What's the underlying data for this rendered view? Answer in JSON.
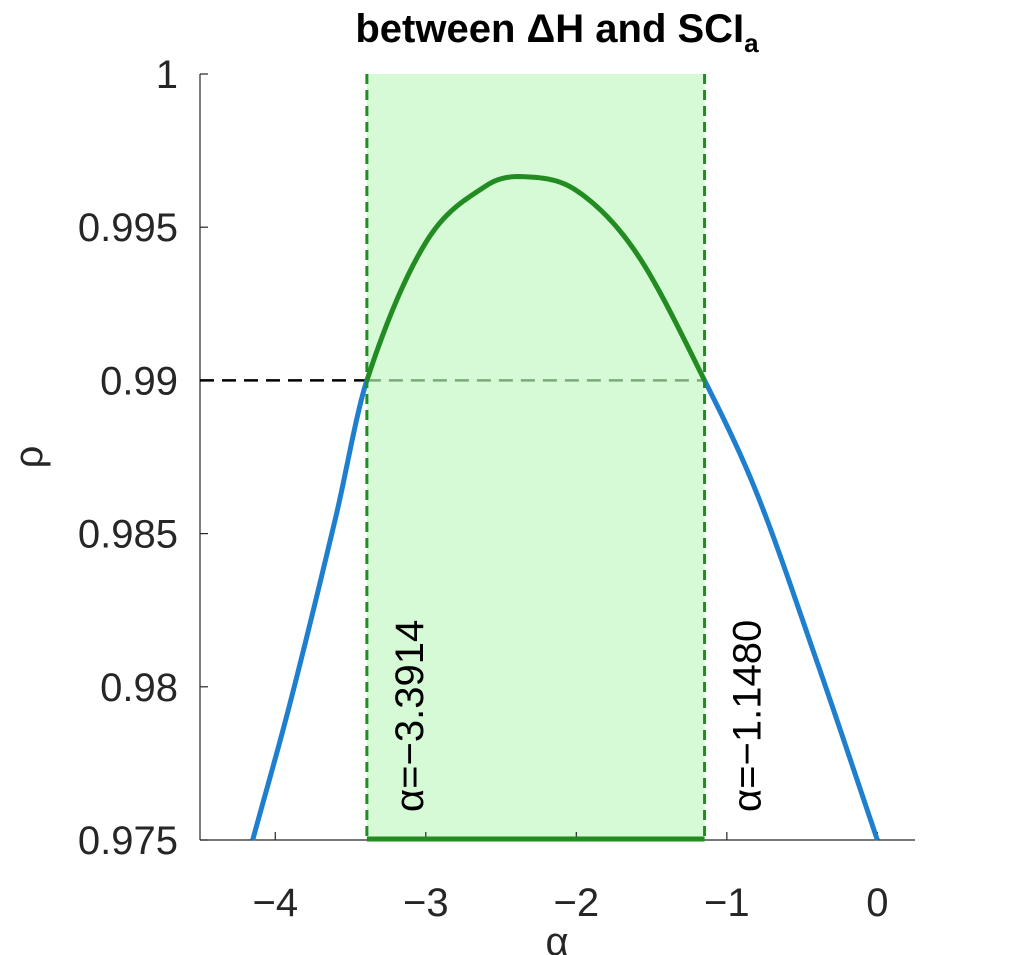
{
  "chart_data": {
    "type": "line",
    "title": "between ΔH and SCI",
    "title_subscript": "a",
    "xlabel": "α",
    "ylabel": "ρ",
    "xlim": [
      -4.5,
      0.25
    ],
    "ylim": [
      0.975,
      1.0
    ],
    "xticks": [
      -4,
      -3,
      -2,
      -1,
      0
    ],
    "xtick_labels": [
      "−4",
      "−3",
      "−2",
      "−1",
      "0"
    ],
    "yticks": [
      0.975,
      0.98,
      0.985,
      0.99,
      0.995,
      1.0
    ],
    "ytick_labels": [
      "0.975",
      "0.98",
      "0.985",
      "0.99",
      "0.995",
      "1"
    ],
    "grid": false,
    "curve": {
      "x_range": [
        -4.15,
        0.0
      ],
      "peak": {
        "x": -2.35,
        "y": 0.99665
      },
      "x_points": [
        -4.15,
        -3.9,
        -3.6,
        -3.3914,
        -3.0,
        -2.6,
        -2.35,
        -2.0,
        -1.6,
        -1.148,
        -0.8,
        -0.4,
        0.0
      ],
      "y_points": [
        0.975,
        0.9795,
        0.9855,
        0.99,
        0.9945,
        0.99635,
        0.99665,
        0.9962,
        0.99415,
        0.99,
        0.9863,
        0.9808,
        0.975
      ]
    },
    "threshold": 0.99,
    "interval": {
      "low": -3.3914,
      "high": -1.148
    },
    "annotations": [
      {
        "text": "α=−3.3914",
        "x": -3.3914
      },
      {
        "text": "α=−1.1480",
        "x": -1.148
      }
    ],
    "colors": {
      "curve_outside": "#1f7fcf",
      "curve_inside": "#228b22",
      "shade": "#d5fad5",
      "interval_line": "#228b22",
      "threshold_line": "#000000",
      "axis": "#262626"
    }
  }
}
